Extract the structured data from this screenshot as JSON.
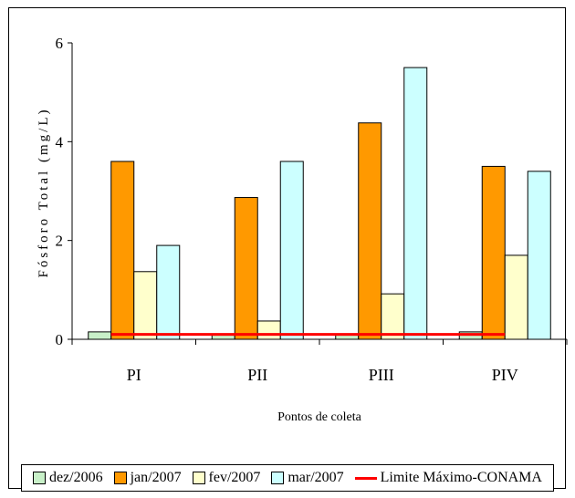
{
  "chart_data": {
    "type": "bar",
    "title": "",
    "xlabel": "Pontos de coleta",
    "ylabel": "Fósforo Total (mg/L)",
    "ylim": [
      0,
      6
    ],
    "yticks": [
      "0",
      "2",
      "4",
      "6"
    ],
    "grid": false,
    "legend_position": "bottom",
    "categories": [
      "PI",
      "PII",
      "PIII",
      "PIV"
    ],
    "series": [
      {
        "name": "dez/2006",
        "color": "#c8f0c8",
        "values": [
          0.15,
          0.1,
          0.1,
          0.15
        ]
      },
      {
        "name": "jan/2007",
        "color": "#ff9900",
        "values": [
          3.6,
          2.87,
          4.38,
          3.5
        ]
      },
      {
        "name": "fev/2007",
        "color": "#ffffcc",
        "values": [
          1.37,
          0.37,
          0.92,
          1.7
        ]
      },
      {
        "name": "mar/2007",
        "color": "#ccffff",
        "values": [
          1.9,
          3.6,
          5.5,
          3.4
        ]
      }
    ],
    "limit_line": {
      "name": "Limite Máximo-CONAMA",
      "color": "#ff0000",
      "value": 0.1
    }
  }
}
